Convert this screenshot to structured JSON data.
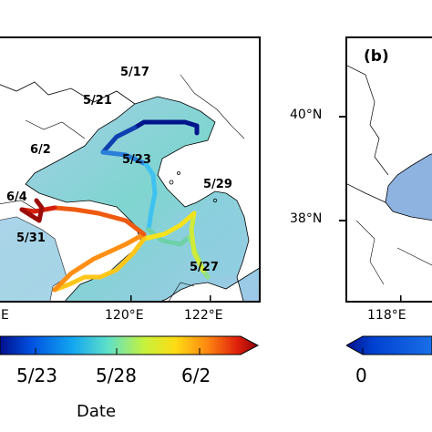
{
  "panel_a": {
    "x_ticks": [
      "120°E",
      "122°E",
      "°E"
    ],
    "track_labels": [
      "5/17",
      "5/21",
      "6/2",
      "5/23",
      "5/29",
      "6/4",
      "5/31",
      "5/27"
    ]
  },
  "panel_b": {
    "label": "(b)",
    "y_ticks": [
      "40°N",
      "38°N"
    ],
    "x_ticks": [
      "118°E"
    ]
  },
  "colorbar_a": {
    "label": "Date",
    "ticks": [
      "5/23",
      "5/28",
      "6/2"
    ],
    "colormap": "jet"
  },
  "colorbar_b": {
    "ticks": [
      "0"
    ]
  },
  "colors": {
    "land": "#ffffff",
    "sea_low": "#a6c8e8",
    "sea_high": "#5fd1c8",
    "coast": "#000000",
    "panel_b_sea": "#8fb3e0",
    "panel_b_land": "#ffffff"
  }
}
